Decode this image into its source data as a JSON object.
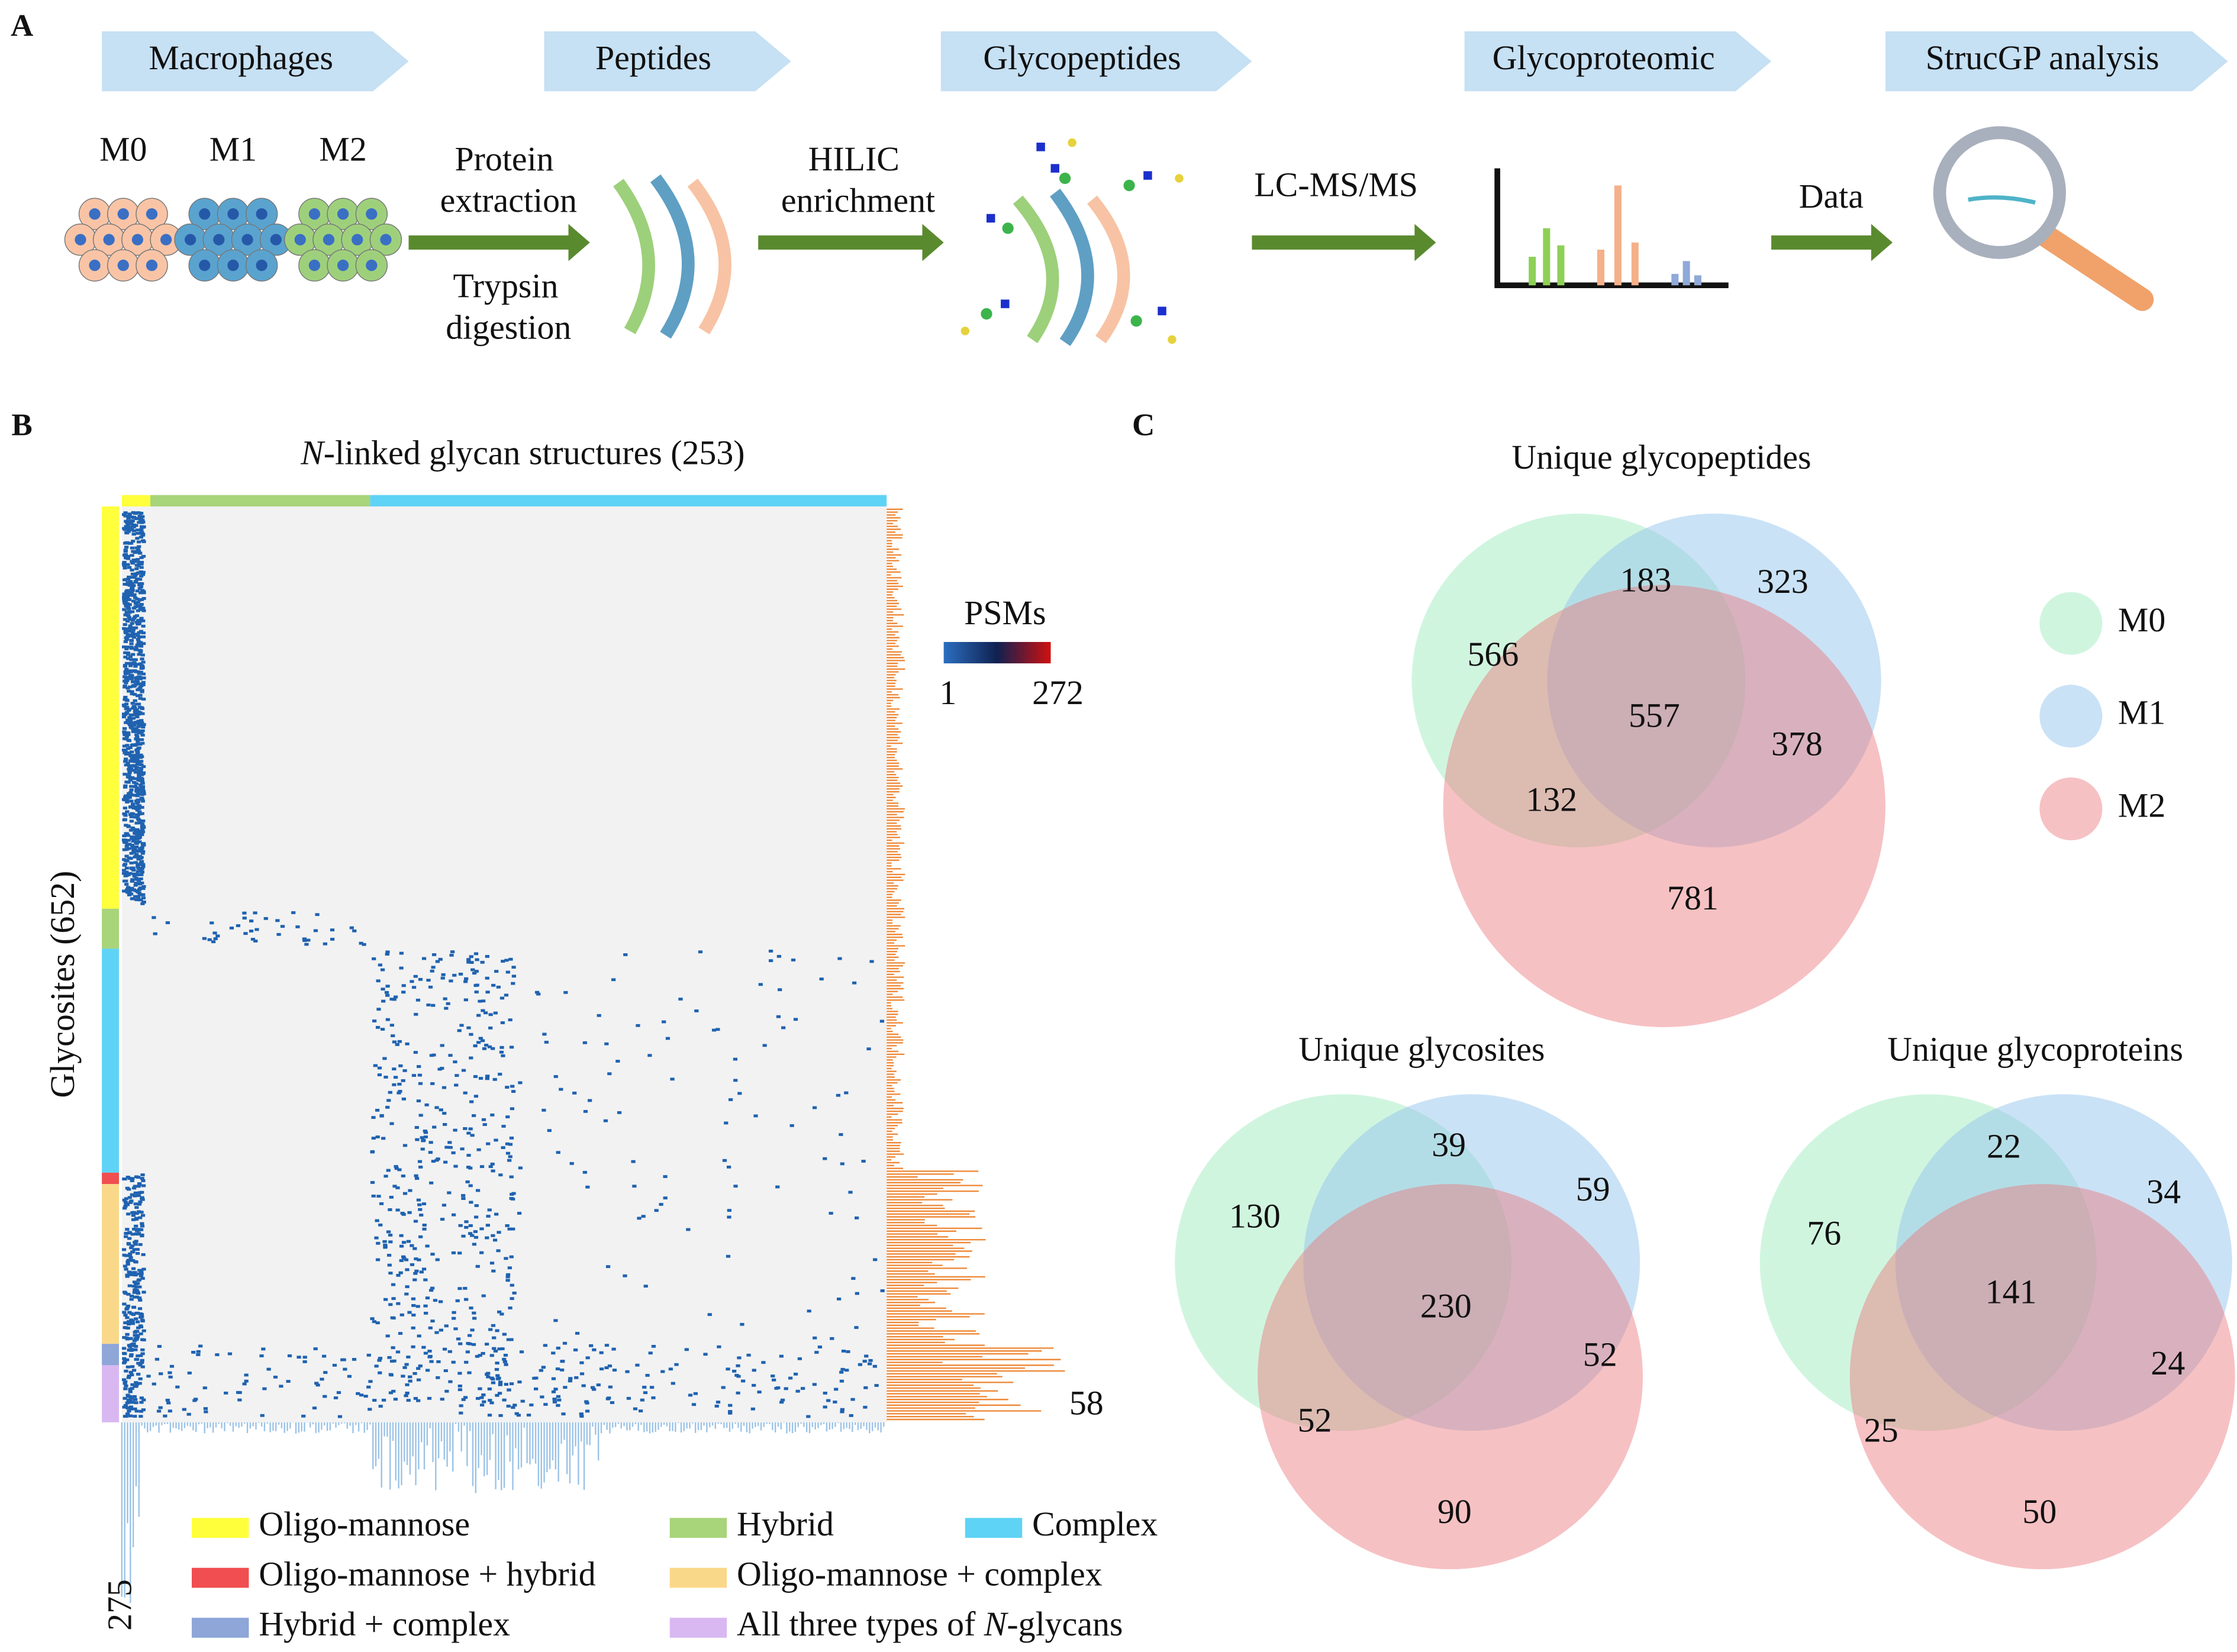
{
  "panel_a": {
    "label": "A",
    "steps": [
      "Macrophages",
      "Peptides",
      "Glycopeptides",
      "Glycoproteomic",
      "StrucGP analysis"
    ],
    "cells": [
      "M0",
      "M1",
      "M2"
    ],
    "step1_top": [
      "Protein",
      "extraction"
    ],
    "step1_bottom": [
      "Trypsin",
      "digestion"
    ],
    "step2": [
      "HILIC",
      "enrichment"
    ],
    "step3": "LC-MS/MS",
    "step4": "Data"
  },
  "panel_b": {
    "label": "B",
    "title": [
      "N",
      "-linked glycan structures (253)"
    ],
    "y_label": "Glycosites (652)",
    "scale_title": "PSMs",
    "scale_min": "1",
    "scale_max": "272",
    "right_max": "58",
    "bottom_max": "275",
    "legend": [
      {
        "color": "#ffff3c",
        "text": [
          "Oligo-mannose"
        ]
      },
      {
        "color": "#a8d47a",
        "text": [
          "Hybrid"
        ]
      },
      {
        "color": "#5fd3f5",
        "text": [
          "Complex"
        ]
      },
      {
        "color": "#f04e50",
        "text": [
          "Oligo-mannose + hybrid"
        ]
      },
      {
        "color": "#fad88a",
        "text": [
          "Oligo-mannose + complex"
        ]
      },
      {
        "color": "#8ea6d8",
        "text": [
          "Hybrid + complex"
        ]
      },
      {
        "color": "#d9b8f2",
        "text": [
          "All three types of ",
          "N",
          "-glycans"
        ]
      }
    ]
  },
  "panel_c": {
    "label": "C",
    "legend": [
      "M0",
      "M1",
      "M2"
    ],
    "venns": [
      {
        "title": "Unique glycopeptides",
        "regions": [
          566,
          183,
          323,
          557,
          378,
          132,
          781
        ]
      },
      {
        "title": "Unique glycosites",
        "regions": [
          130,
          39,
          59,
          230,
          52,
          52,
          90
        ]
      },
      {
        "title": "Unique glycoproteins",
        "regions": [
          76,
          22,
          34,
          141,
          24,
          25,
          50
        ]
      }
    ]
  }
}
